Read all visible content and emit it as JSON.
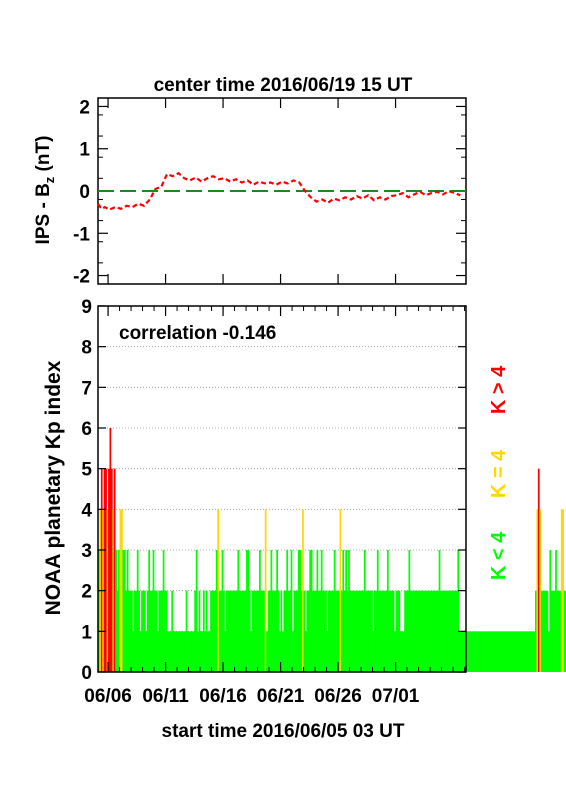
{
  "chart_data": [
    {
      "type": "line",
      "title": "center time 2016/06/19 15 UT",
      "ylabel_main": "IPS - B",
      "ylabel_sub": "z",
      "ylabel_unit": " (nT)",
      "ylim": [
        -2.2,
        2.2
      ],
      "yticks": [
        -2,
        -1,
        0,
        1,
        2
      ],
      "xlim_days": [
        0,
        32
      ],
      "reference_line": {
        "y": 0,
        "color": "#1a8a1a",
        "style": "dashed"
      },
      "series_color": "#ff0000",
      "x": [
        0,
        0.3,
        0.6,
        1,
        1.5,
        2,
        2.5,
        3,
        3.5,
        4,
        4.5,
        5,
        5.5,
        6,
        6.5,
        7,
        7.5,
        8,
        8.5,
        9,
        9.5,
        10,
        10.5,
        11,
        11.5,
        12,
        12.5,
        13,
        13.5,
        14,
        14.5,
        15,
        15.5,
        16,
        16.5,
        17,
        17.5,
        18,
        18.5,
        19,
        19.5,
        20,
        20.5,
        21,
        21.5,
        22,
        22.5,
        23,
        23.5,
        24,
        24.5,
        25,
        25.5,
        26,
        26.5,
        27,
        27.5,
        28,
        28.5,
        29,
        29.5,
        30,
        30.5,
        31,
        31.5
      ],
      "y": [
        -0.3,
        -0.42,
        -0.38,
        -0.44,
        -0.38,
        -0.42,
        -0.35,
        -0.38,
        -0.3,
        -0.35,
        -0.2,
        0.05,
        0.1,
        0.4,
        0.35,
        0.42,
        0.3,
        0.25,
        0.32,
        0.22,
        0.3,
        0.35,
        0.28,
        0.3,
        0.22,
        0.28,
        0.2,
        0.25,
        0.15,
        0.22,
        0.18,
        0.2,
        0.15,
        0.22,
        0.18,
        0.25,
        0.2,
        0.0,
        -0.15,
        -0.25,
        -0.2,
        -0.28,
        -0.18,
        -0.22,
        -0.15,
        -0.2,
        -0.12,
        -0.18,
        -0.1,
        -0.22,
        -0.15,
        -0.2,
        -0.12,
        -0.1,
        -0.05,
        -0.15,
        -0.08,
        -0.02,
        -0.1,
        -0.05,
        -0.02,
        -0.08,
        0.0,
        -0.05,
        -0.1
      ]
    },
    {
      "type": "bar",
      "annotation": "correlation -0.146",
      "ylabel": "NOAA planetary Kp index",
      "xlabel": "start time 2016/06/05 03 UT",
      "ylim": [
        0,
        9
      ],
      "yticks": [
        0,
        1,
        2,
        3,
        4,
        5,
        6,
        7,
        8,
        9
      ],
      "xlim_days": [
        0,
        32
      ],
      "xtick_labels": [
        "06/06",
        "06/11",
        "06/16",
        "06/21",
        "06/26",
        "07/01"
      ],
      "xtick_days": [
        0.875,
        5.875,
        10.875,
        15.875,
        20.875,
        25.875
      ],
      "bar_width_days": 0.125,
      "colors": {
        "low": "#00ff00",
        "mid": "#ffd800",
        "high": "#ff0000"
      },
      "legend": [
        {
          "label": "K < 4",
          "color": "#00ff00"
        },
        {
          "label": "K = 4",
          "color": "#ffd800"
        },
        {
          "label": "K > 4",
          "color": "#ff0000"
        }
      ],
      "values": [
        3,
        4,
        5,
        4,
        5,
        5,
        4,
        5,
        6,
        5,
        4,
        5,
        3,
        2,
        3,
        4,
        4,
        3,
        3,
        2,
        3,
        2,
        2,
        2,
        1,
        2,
        2,
        3,
        2,
        1,
        2,
        2,
        2,
        1,
        2,
        3,
        2,
        2,
        3,
        2,
        2,
        1,
        2,
        2,
        2,
        3,
        2,
        2,
        1,
        1,
        1,
        2,
        1,
        1,
        1,
        1,
        1,
        1,
        1,
        1,
        1,
        2,
        1,
        1,
        1,
        1,
        1,
        2,
        3,
        1,
        2,
        1,
        1,
        2,
        1,
        2,
        1,
        1,
        2,
        2,
        2,
        2,
        3,
        4,
        2,
        2,
        3,
        2,
        1,
        2,
        2,
        2,
        2,
        2,
        2,
        2,
        2,
        3,
        2,
        2,
        2,
        2,
        2,
        3,
        3,
        2,
        1,
        2,
        2,
        2,
        2,
        2,
        3,
        2,
        2,
        2,
        4,
        1,
        2,
        2,
        3,
        2,
        2,
        2,
        3,
        2,
        1,
        2,
        1,
        2,
        2,
        3,
        2,
        2,
        3,
        1,
        2,
        2,
        2,
        3,
        3,
        2,
        4,
        2,
        1,
        2,
        2,
        3,
        3,
        2,
        2,
        2,
        3,
        2,
        2,
        3,
        2,
        2,
        2,
        1,
        2,
        2,
        2,
        2,
        3,
        2,
        2,
        2,
        4,
        2,
        3,
        2,
        3,
        2,
        3,
        2,
        2,
        2,
        2,
        2,
        2,
        2,
        2,
        2,
        2,
        3,
        2,
        2,
        2,
        2,
        2,
        1,
        2,
        2,
        3,
        2,
        2,
        2,
        2,
        2,
        2,
        3,
        2,
        2,
        2,
        2,
        1,
        2,
        2,
        2,
        1,
        1,
        1,
        2,
        2,
        2,
        3,
        2,
        2,
        2,
        2,
        2,
        2,
        2,
        2,
        2,
        2,
        2,
        2,
        2,
        2,
        2,
        2,
        2,
        2,
        2,
        2,
        3,
        2,
        2,
        2,
        2,
        2,
        2,
        2,
        2,
        2,
        2,
        2,
        2,
        3,
        1,
        1,
        1,
        1,
        1,
        1,
        1,
        1,
        1,
        1,
        1,
        1,
        1,
        1,
        1,
        1,
        1,
        1,
        1,
        1,
        1,
        1,
        1,
        1,
        1,
        1,
        1,
        1,
        1,
        1,
        1,
        1,
        1,
        1,
        1,
        1,
        1,
        1,
        1,
        1,
        1,
        1,
        1,
        1,
        1,
        1,
        1,
        1,
        1,
        1,
        1,
        1,
        1,
        2,
        4,
        5,
        4,
        2,
        2,
        2,
        2,
        2,
        1,
        3,
        2,
        2,
        2,
        3,
        2,
        2,
        2,
        4,
        4,
        2,
        2,
        2,
        2,
        1,
        2,
        3,
        1,
        2,
        2,
        2,
        2,
        2,
        2,
        2,
        2,
        2,
        2,
        2,
        1,
        2,
        2,
        2,
        2,
        2,
        3,
        2,
        2,
        2,
        1,
        2,
        2,
        2,
        1,
        2,
        2,
        2,
        2,
        4,
        2,
        2,
        2,
        2,
        2,
        2,
        2,
        2,
        1,
        2,
        2,
        2,
        1,
        3,
        2,
        2,
        2,
        1,
        2,
        1,
        2,
        2,
        1,
        1,
        1,
        1,
        2,
        1,
        2,
        2,
        1,
        2,
        2,
        1,
        1,
        2,
        2,
        2,
        1,
        2,
        2,
        2,
        2,
        1,
        1,
        2,
        3,
        3,
        3,
        2,
        3,
        2,
        3,
        2,
        1,
        2,
        2,
        2,
        2,
        2,
        2,
        2,
        2,
        2,
        2,
        2,
        2,
        4,
        3,
        2,
        2,
        2,
        3,
        3,
        2,
        2,
        2,
        2,
        3,
        2,
        3,
        3,
        2,
        2,
        2,
        3,
        2,
        2,
        2,
        3,
        2,
        2,
        2,
        2,
        2,
        2,
        2,
        3,
        2,
        2,
        3,
        2,
        2,
        3
      ]
    }
  ]
}
